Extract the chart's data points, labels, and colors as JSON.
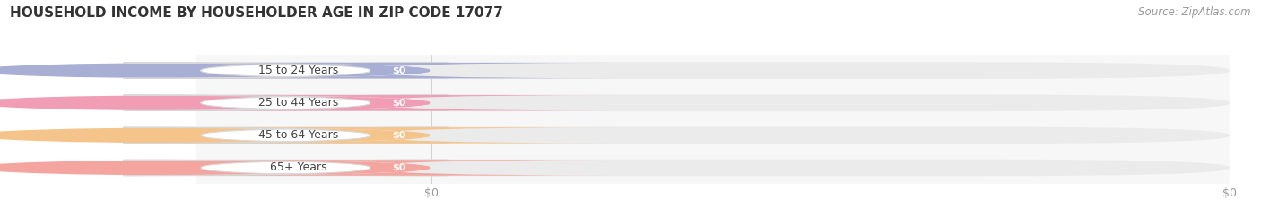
{
  "title": "HOUSEHOLD INCOME BY HOUSEHOLDER AGE IN ZIP CODE 17077",
  "source_text": "Source: ZipAtlas.com",
  "categories": [
    "15 to 24 Years",
    "25 to 44 Years",
    "45 to 64 Years",
    "65+ Years"
  ],
  "values": [
    0,
    0,
    0,
    0
  ],
  "bar_colors": [
    "#a8aed4",
    "#f09db5",
    "#f5c48a",
    "#f5a5a0"
  ],
  "bar_bg_color": "#ebebeb",
  "background_color": "#ffffff",
  "plot_bg_color": "#f7f7f7",
  "title_fontsize": 11,
  "source_fontsize": 8.5,
  "tick_label_fontsize": 9,
  "bar_label_fontsize": 8,
  "category_fontsize": 9
}
